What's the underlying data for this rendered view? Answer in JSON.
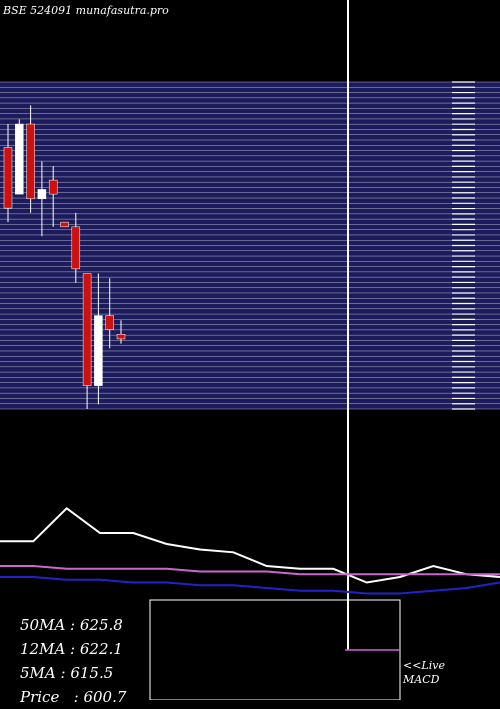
{
  "title": "BSE 524091 munafasutra.pro",
  "colors": {
    "background": "#000000",
    "panel": "#1c1c5c",
    "grid": "#ffffff",
    "bull": "#ffffff",
    "bear": "#cc1111",
    "ma_white": "#ffffff",
    "ma_magenta": "#cc66cc",
    "ma_blue": "#2222cc"
  },
  "stats": {
    "ma50": "50MA : 625.8",
    "ma12": "12MA : 622.1",
    "ma5": "5MA : 615.5",
    "price": "Price   : 600.7"
  },
  "live": {
    "line1": "<<Live",
    "line2": "MACD"
  },
  "chart_data": {
    "type": "candlestick",
    "ylim": [
      585,
      655
    ],
    "candles": [
      {
        "open": 641,
        "high": 646,
        "low": 625,
        "close": 628
      },
      {
        "open": 631,
        "high": 647,
        "low": 631,
        "close": 646
      },
      {
        "open": 646,
        "high": 650,
        "low": 627,
        "close": 630
      },
      {
        "open": 630,
        "high": 638,
        "low": 622,
        "close": 632
      },
      {
        "open": 634,
        "high": 637,
        "low": 624,
        "close": 631
      },
      {
        "open": 625,
        "high": 625,
        "low": 624,
        "close": 624
      },
      {
        "open": 624,
        "high": 627,
        "low": 612,
        "close": 615
      },
      {
        "open": 614,
        "high": 614,
        "low": 585,
        "close": 590
      },
      {
        "open": 590,
        "high": 614,
        "low": 586,
        "close": 605
      },
      {
        "open": 605,
        "high": 613,
        "low": 598,
        "close": 602
      },
      {
        "open": 601,
        "high": 604,
        "low": 599,
        "close": 600
      }
    ],
    "ma_lines": [
      {
        "color": "white",
        "values": [
          615,
          615,
          627,
          618,
          618,
          614,
          612,
          611,
          606,
          605,
          605,
          600,
          602,
          606,
          603,
          602
        ]
      },
      {
        "color": "magenta",
        "values": [
          606,
          606,
          605,
          605,
          605,
          605,
          604,
          604,
          604,
          603,
          603,
          603,
          603,
          603,
          603,
          603
        ]
      },
      {
        "color": "blue",
        "values": [
          602,
          602,
          601,
          601,
          600,
          600,
          599,
          599,
          598,
          597,
          597,
          596,
          596,
          597,
          598,
          600
        ]
      }
    ]
  }
}
